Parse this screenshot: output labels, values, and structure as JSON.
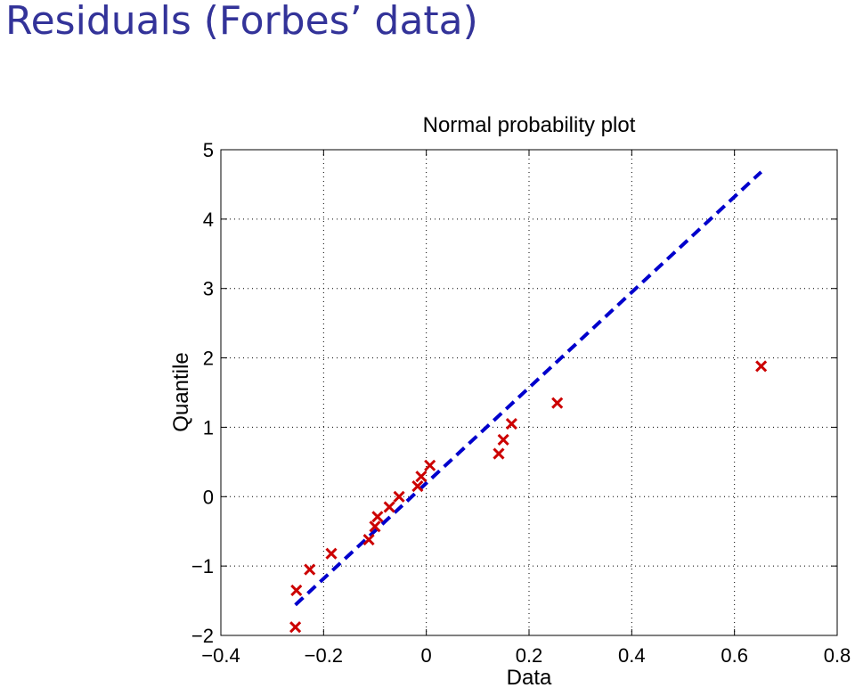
{
  "slide": {
    "title": "Residuals (Forbes’ data)",
    "title_color": "#333399"
  },
  "chart_data": {
    "type": "scatter",
    "title": "Normal probability plot",
    "xlabel": "Data",
    "ylabel": "Quantile",
    "xlim": [
      -0.4,
      0.8
    ],
    "ylim": [
      -2,
      5
    ],
    "xticks": [
      -0.4,
      -0.2,
      0,
      0.2,
      0.4,
      0.6,
      0.8
    ],
    "xtick_labels": [
      "−0.4",
      "−0.2",
      "0",
      "0.2",
      "0.4",
      "0.6",
      "0.8"
    ],
    "yticks": [
      -2,
      -1,
      0,
      1,
      2,
      3,
      4,
      5
    ],
    "ytick_labels": [
      "−2",
      "−1",
      "0",
      "1",
      "2",
      "3",
      "4",
      "5"
    ],
    "grid": true,
    "points": {
      "marker": "x",
      "color": "#cc0000",
      "x": [
        -0.255,
        -0.253,
        -0.227,
        -0.185,
        -0.112,
        -0.1,
        -0.095,
        -0.072,
        -0.053,
        -0.017,
        -0.01,
        0.007,
        0.141,
        0.15,
        0.166,
        0.255,
        0.652
      ],
      "y": [
        -1.88,
        -1.35,
        -1.05,
        -0.82,
        -0.62,
        -0.43,
        -0.29,
        -0.15,
        0.0,
        0.15,
        0.29,
        0.45,
        0.62,
        0.82,
        1.05,
        1.35,
        1.88
      ]
    },
    "reference_line": {
      "style": "dashed",
      "color": "#0000cc",
      "x": [
        -0.255,
        0.652
      ],
      "y": [
        -1.56,
        4.68
      ]
    }
  }
}
